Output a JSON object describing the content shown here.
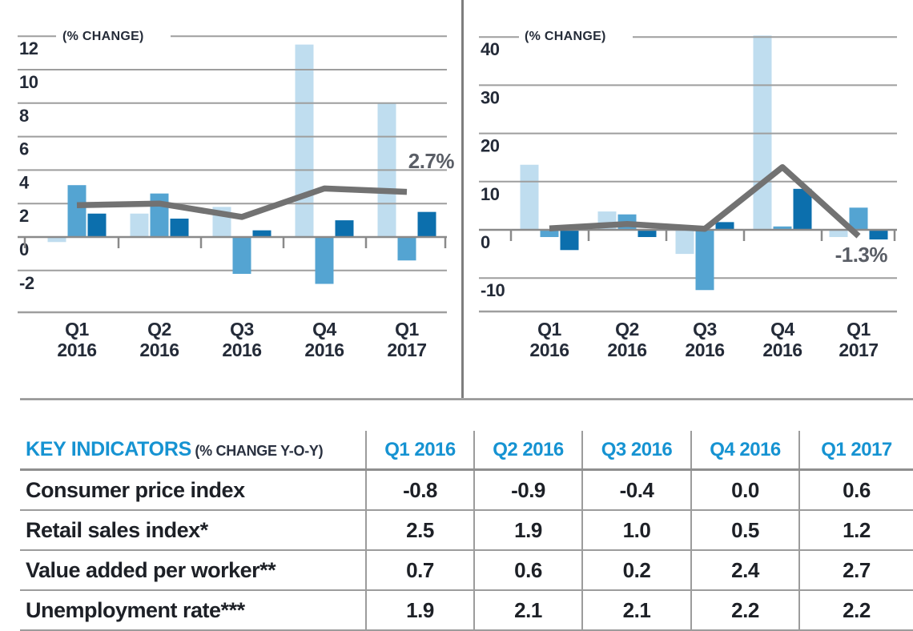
{
  "palette": {
    "light_blue": "#BFDDEF",
    "medium_blue": "#54A4D2",
    "dark_blue": "#0C6FAD",
    "line_gray": "#727272",
    "grid_gray": "#9E9E9E",
    "axis_gray": "#8A8A8A",
    "navy_text": "#242B38",
    "table_blue": "#1693D2",
    "annotation_gray": "#5A5E66"
  },
  "chart_data": [
    {
      "type": "bar",
      "title": "(% CHANGE)",
      "categories": [
        "Q1 2016",
        "Q2 2016",
        "Q3 2016",
        "Q4 2016",
        "Q1 2017"
      ],
      "y_ticks": [
        12,
        10,
        8,
        6,
        4,
        2,
        0,
        -2
      ],
      "ylim": [
        -3.3,
        12.3
      ],
      "grid": true,
      "legend": "none",
      "series": [
        {
          "name": "light-blue-bars",
          "kind": "bar",
          "color": "#BFDDEF",
          "values": [
            -0.3,
            1.4,
            1.8,
            11.5,
            8.0
          ]
        },
        {
          "name": "medium-blue-bars",
          "kind": "bar",
          "color": "#54A4D2",
          "values": [
            3.1,
            2.6,
            -2.2,
            -2.8,
            -1.4
          ]
        },
        {
          "name": "dark-blue-bars",
          "kind": "bar",
          "color": "#0C6FAD",
          "values": [
            1.4,
            1.1,
            0.4,
            1.0,
            1.5
          ]
        },
        {
          "name": "gray-trend-line",
          "kind": "line",
          "color": "#727272",
          "values": [
            1.9,
            2.0,
            1.2,
            2.9,
            2.7
          ]
        }
      ],
      "annotation": "2.7%"
    },
    {
      "type": "bar",
      "title": "(% CHANGE)",
      "categories": [
        "Q1 2016",
        "Q2 2016",
        "Q3 2016",
        "Q4 2016",
        "Q1 2017"
      ],
      "y_ticks": [
        40,
        30,
        20,
        10,
        0,
        -10
      ],
      "ylim": [
        -14,
        41
      ],
      "grid": true,
      "legend": "none",
      "series": [
        {
          "name": "light-blue-bars",
          "kind": "bar",
          "color": "#BFDDEF",
          "values": [
            13.5,
            3.8,
            -5.0,
            40.3,
            -1.5
          ]
        },
        {
          "name": "medium-blue-bars",
          "kind": "bar",
          "color": "#54A4D2",
          "values": [
            -1.5,
            3.2,
            -12.5,
            0.7,
            4.6
          ]
        },
        {
          "name": "dark-blue-bars",
          "kind": "bar",
          "color": "#0C6FAD",
          "values": [
            -4.2,
            -1.5,
            1.6,
            8.5,
            -2.0
          ]
        },
        {
          "name": "gray-trend-line",
          "kind": "line",
          "color": "#727272",
          "values": [
            0.3,
            1.2,
            0.2,
            13.0,
            -1.3
          ]
        }
      ],
      "annotation": "-1.3%"
    }
  ],
  "table": {
    "title": "KEY INDICATORS",
    "subtitle": "(% CHANGE Y-O-Y)",
    "columns": [
      "Q1 2016",
      "Q2 2016",
      "Q3 2016",
      "Q4 2016",
      "Q1 2017"
    ],
    "rows": [
      {
        "label": "Consumer price index",
        "values": [
          "-0.8",
          "-0.9",
          "-0.4",
          "0.0",
          "0.6"
        ]
      },
      {
        "label": "Retail sales index*",
        "values": [
          "2.5",
          "1.9",
          "1.0",
          "0.5",
          "1.2"
        ]
      },
      {
        "label": "Value added per worker**",
        "values": [
          "0.7",
          "0.6",
          "0.2",
          "2.4",
          "2.7"
        ]
      },
      {
        "label": "Unemployment rate***",
        "values": [
          "1.9",
          "2.1",
          "2.1",
          "2.2",
          "2.2"
        ]
      }
    ]
  }
}
